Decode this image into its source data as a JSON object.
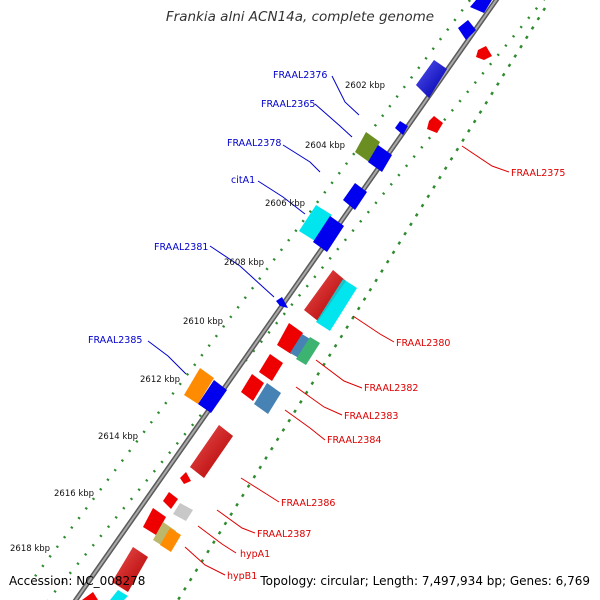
{
  "title": "Frankia alni ACN14a, complete genome",
  "accession": "Accession: NC_008278",
  "summary": "Topology: circular; Length: 7,497,934 bp; Genes: 6,769",
  "ticks": [
    "2602 kbp",
    "2604 kbp",
    "2606 kbp",
    "2608 kbp",
    "2610 kbp",
    "2612 kbp",
    "2614 kbp",
    "2616 kbp",
    "2618 kbp"
  ],
  "left_labels": [
    "FRAAL2376",
    "FRAAL2365",
    "FRAAL2378",
    "citA1",
    "FRAAL2381",
    "FRAAL2385"
  ],
  "right_labels": [
    "FRAAL2375",
    "FRAAL2380",
    "FRAAL2382",
    "FRAAL2383",
    "FRAAL2384",
    "FRAAL2386",
    "FRAAL2387",
    "hypA1",
    "hypB1"
  ],
  "colors": {
    "backbone": "#7f7f7f",
    "forward_strand": "#0000ee",
    "reverse_strand": "#ee0000",
    "track_dots": "#2e8b2e",
    "cyan_gene": "#00e5ee",
    "olive_gene": "#6b8e23",
    "orange_gene": "#ff8c00",
    "steel_gene": "#4682b4",
    "green_gene": "#3cb371",
    "gray_gene": "#c8c8c8",
    "khaki_gene": "#bdb76b"
  }
}
